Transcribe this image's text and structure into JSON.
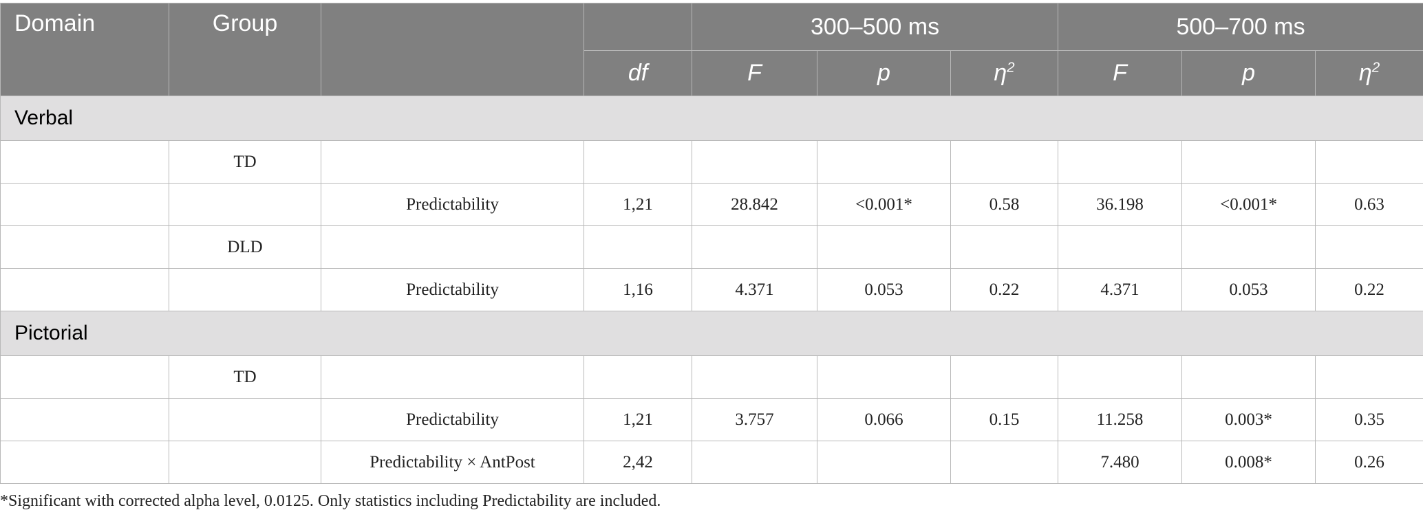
{
  "table": {
    "header": {
      "domain": "Domain",
      "group": "Group",
      "window1": "300–500 ms",
      "window2": "500–700 ms",
      "df": "df",
      "F1": "F",
      "p1": "p",
      "eta1": {
        "symbol": "η",
        "sup": "2"
      },
      "F2": "F",
      "p2": "p",
      "eta2": {
        "symbol": "η",
        "sup": "2"
      }
    },
    "sections": [
      {
        "label": "Verbal",
        "rows": [
          {
            "group": "TD"
          },
          {
            "effect": "Predictability",
            "df": "1,21",
            "F1": "28.842",
            "p1": "<0.001*",
            "eta1": "0.58",
            "F2": "36.198",
            "p2": "<0.001*",
            "eta2": "0.63"
          },
          {
            "group": "DLD"
          },
          {
            "effect": "Predictability",
            "df": "1,16",
            "F1": "4.371",
            "p1": "0.053",
            "eta1": "0.22",
            "F2": "4.371",
            "p2": "0.053",
            "eta2": "0.22"
          }
        ]
      },
      {
        "label": "Pictorial",
        "rows": [
          {
            "group": "TD"
          },
          {
            "effect": "Predictability",
            "df": "1,21",
            "F1": "3.757",
            "p1": "0.066",
            "eta1": "0.15",
            "F2": "11.258",
            "p2": "0.003*",
            "eta2": "0.35"
          },
          {
            "effect": "Predictability × AntPost",
            "df": "2,42",
            "F2": "7.480",
            "p2": "0.008*",
            "eta2": "0.26"
          }
        ]
      }
    ],
    "footnote": "*Significant with corrected alpha level, 0.0125. Only statistics including Predictability are included."
  }
}
